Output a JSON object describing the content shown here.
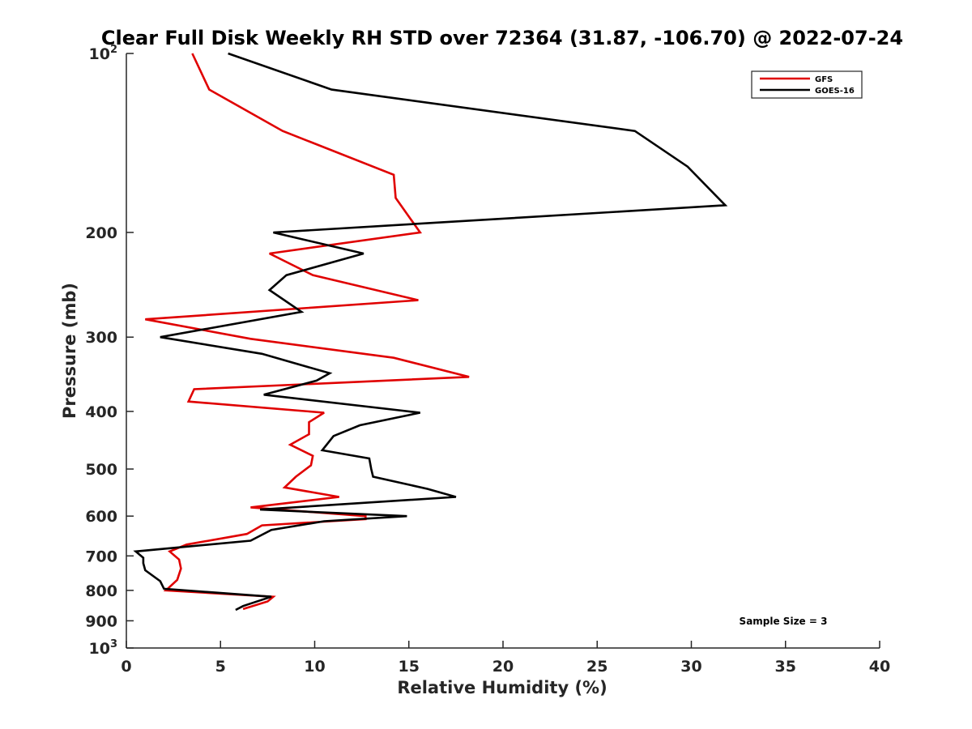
{
  "chart_data": {
    "type": "line",
    "title": "Clear Full Disk Weekly RH STD over 72364 (31.87, -106.70) @ 2022-07-24",
    "xlabel": "Relative Humidity (%)",
    "ylabel": "Pressure (mb)",
    "xlim": [
      0,
      40
    ],
    "ylim": [
      100,
      1000
    ],
    "y_scale": "log",
    "y_reversed": true,
    "x_ticks": [
      "0",
      "5",
      "10",
      "15",
      "20",
      "25",
      "30",
      "35",
      "40"
    ],
    "y_ticks": [
      {
        "value": 100,
        "base": "10",
        "exp": "2"
      },
      {
        "value": 200,
        "label": "200"
      },
      {
        "value": 300,
        "label": "300"
      },
      {
        "value": 400,
        "label": "400"
      },
      {
        "value": 500,
        "label": "500"
      },
      {
        "value": 600,
        "label": "600"
      },
      {
        "value": 700,
        "label": "700"
      },
      {
        "value": 800,
        "label": "800"
      },
      {
        "value": 900,
        "label": "900"
      },
      {
        "value": 1000,
        "base": "10",
        "exp": "3"
      }
    ],
    "legend_position": "top-right",
    "annotation": "Sample Size = 3",
    "series": [
      {
        "name": "GFS",
        "color": "#e00000",
        "points": [
          [
            3.5,
            100
          ],
          [
            4.4,
            115
          ],
          [
            8.3,
            135
          ],
          [
            14.2,
            160
          ],
          [
            14.3,
            175
          ],
          [
            15.6,
            200
          ],
          [
            7.6,
            217
          ],
          [
            9.9,
            236
          ],
          [
            15.5,
            260
          ],
          [
            1.0,
            280
          ],
          [
            6.6,
            302
          ],
          [
            14.2,
            325
          ],
          [
            18.2,
            350
          ],
          [
            3.6,
            367
          ],
          [
            3.3,
            385
          ],
          [
            10.5,
            402
          ],
          [
            9.7,
            417
          ],
          [
            9.7,
            437
          ],
          [
            8.7,
            455
          ],
          [
            9.9,
            475
          ],
          [
            9.8,
            493
          ],
          [
            9.0,
            515
          ],
          [
            8.4,
            537
          ],
          [
            11.3,
            557
          ],
          [
            6.6,
            580
          ],
          [
            12.7,
            600
          ],
          [
            12.7,
            607
          ],
          [
            7.2,
            622
          ],
          [
            6.4,
            643
          ],
          [
            3.2,
            670
          ],
          [
            2.3,
            688
          ],
          [
            2.8,
            710
          ],
          [
            2.9,
            735
          ],
          [
            2.7,
            768
          ],
          [
            2.1,
            800
          ],
          [
            7.8,
            820
          ],
          [
            7.5,
            835
          ],
          [
            6.2,
            860
          ]
        ]
      },
      {
        "name": "GOES-16",
        "color": "#000000",
        "points": [
          [
            5.4,
            100
          ],
          [
            10.9,
            115
          ],
          [
            27.0,
            135
          ],
          [
            29.8,
            155
          ],
          [
            31.8,
            180
          ],
          [
            7.8,
            200
          ],
          [
            12.6,
            217
          ],
          [
            8.5,
            236
          ],
          [
            7.6,
            250
          ],
          [
            9.3,
            272
          ],
          [
            1.8,
            300
          ],
          [
            7.2,
            320
          ],
          [
            10.8,
            345
          ],
          [
            10.1,
            355
          ],
          [
            7.3,
            375
          ],
          [
            15.6,
            402
          ],
          [
            12.4,
            422
          ],
          [
            11.0,
            440
          ],
          [
            10.4,
            465
          ],
          [
            12.9,
            480
          ],
          [
            13.0,
            500
          ],
          [
            13.1,
            515
          ],
          [
            16.0,
            540
          ],
          [
            17.5,
            557
          ],
          [
            7.1,
            585
          ],
          [
            14.9,
            600
          ],
          [
            10.5,
            612
          ],
          [
            7.7,
            633
          ],
          [
            6.6,
            660
          ],
          [
            0.5,
            688
          ],
          [
            0.9,
            705
          ],
          [
            0.9,
            720
          ],
          [
            1.0,
            740
          ],
          [
            1.8,
            772
          ],
          [
            2.0,
            795
          ],
          [
            7.7,
            820
          ],
          [
            6.2,
            850
          ],
          [
            5.8,
            863
          ]
        ]
      }
    ]
  }
}
